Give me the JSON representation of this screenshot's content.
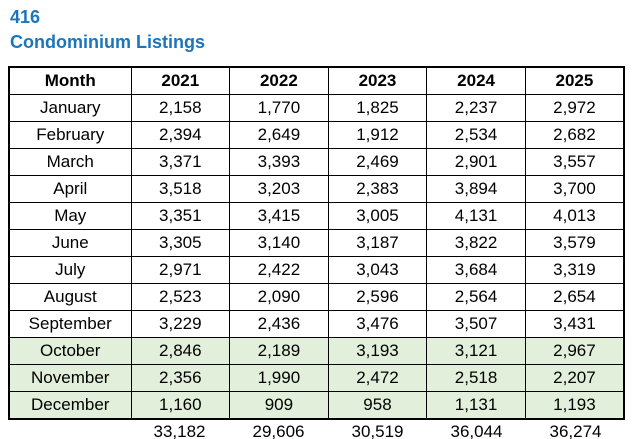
{
  "header": {
    "report_number": "416",
    "title": "Condominium Listings"
  },
  "colors": {
    "title_blue": "#1b75bc",
    "highlight_green": "#e2efda",
    "border": "#000000",
    "text": "#000000",
    "background": "#ffffff"
  },
  "chart_data": {
    "type": "table",
    "title": "416 Condominium Listings",
    "columns": [
      "Month",
      "2021",
      "2022",
      "2023",
      "2024",
      "2025"
    ],
    "rows": [
      {
        "month": "January",
        "values": [
          "2,158",
          "1,770",
          "1,825",
          "2,237",
          "2,972"
        ],
        "highlighted": false
      },
      {
        "month": "February",
        "values": [
          "2,394",
          "2,649",
          "1,912",
          "2,534",
          "2,682"
        ],
        "highlighted": false
      },
      {
        "month": "March",
        "values": [
          "3,371",
          "3,393",
          "2,469",
          "2,901",
          "3,557"
        ],
        "highlighted": false
      },
      {
        "month": "April",
        "values": [
          "3,518",
          "3,203",
          "2,383",
          "3,894",
          "3,700"
        ],
        "highlighted": false
      },
      {
        "month": "May",
        "values": [
          "3,351",
          "3,415",
          "3,005",
          "4,131",
          "4,013"
        ],
        "highlighted": false
      },
      {
        "month": "June",
        "values": [
          "3,305",
          "3,140",
          "3,187",
          "3,822",
          "3,579"
        ],
        "highlighted": false
      },
      {
        "month": "July",
        "values": [
          "2,971",
          "2,422",
          "3,043",
          "3,684",
          "3,319"
        ],
        "highlighted": false
      },
      {
        "month": "August",
        "values": [
          "2,523",
          "2,090",
          "2,596",
          "2,564",
          "2,654"
        ],
        "highlighted": false
      },
      {
        "month": "September",
        "values": [
          "3,229",
          "2,436",
          "3,476",
          "3,507",
          "3,431"
        ],
        "highlighted": false
      },
      {
        "month": "October",
        "values": [
          "2,846",
          "2,189",
          "3,193",
          "3,121",
          "2,967"
        ],
        "highlighted": true
      },
      {
        "month": "November",
        "values": [
          "2,356",
          "1,990",
          "2,472",
          "2,518",
          "2,207"
        ],
        "highlighted": true
      },
      {
        "month": "December",
        "values": [
          "1,160",
          "909",
          "958",
          "1,131",
          "1,193"
        ],
        "highlighted": true
      }
    ],
    "totals": [
      "",
      "33,182",
      "29,606",
      "30,519",
      "36,044",
      "36,274"
    ],
    "layout_hints": {
      "highlighted_rows": [
        "October",
        "November",
        "December"
      ],
      "totals_row_borderless": true,
      "grid": "all black borders, bold outer border"
    }
  }
}
